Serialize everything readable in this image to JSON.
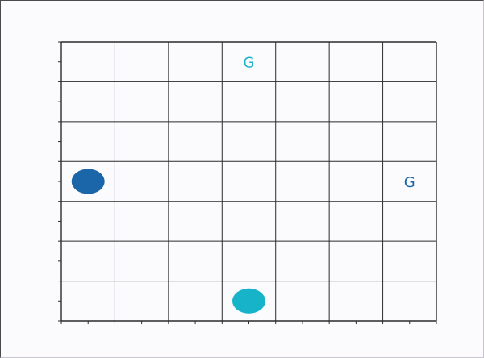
{
  "board": {
    "columns": 7,
    "rows": 7
  },
  "agents": [
    {
      "name": "agent-blue",
      "col": 0,
      "row": 3,
      "color": "#1a66a8"
    },
    {
      "name": "agent-cyan",
      "col": 3,
      "row": 6,
      "color": "#16b3c9"
    }
  ],
  "goals": [
    {
      "name": "goal-cyan",
      "label": "G",
      "col": 3,
      "row": 0,
      "color": "#16b3c9"
    },
    {
      "name": "goal-blue",
      "label": "G",
      "col": 6,
      "row": 3,
      "color": "#1a66a8"
    }
  ],
  "colors": {
    "background": "#fbfafd",
    "grid_line": "#2b2b2b"
  }
}
